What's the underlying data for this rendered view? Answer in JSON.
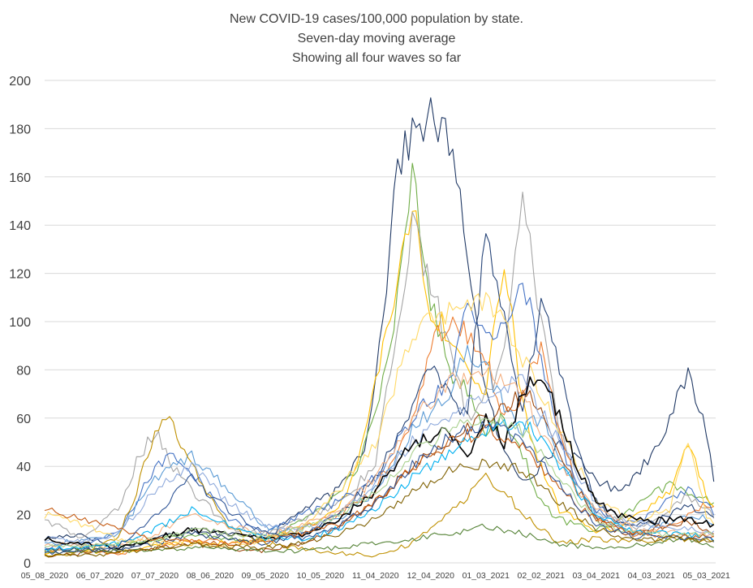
{
  "chart_data": {
    "type": "line",
    "title": [
      "New COVID-19 cases/100,000 population by state.",
      "Seven-day moving average",
      "Showing all four waves so far"
    ],
    "xlabel": "",
    "ylabel": "",
    "ylim": [
      0,
      200
    ],
    "yticks": [
      "0",
      "20",
      "40",
      "60",
      "80",
      "100",
      "120",
      "140",
      "160",
      "180",
      "200"
    ],
    "x_tick_labels": [
      "05_08_2020",
      "06_07_2020",
      "07_07_2020",
      "08_06_2020",
      "09_05_2020",
      "10_05_2020",
      "11_04_2020",
      "12_04_2020",
      "01_03_2021",
      "02_02_2021",
      "03_04_2021",
      "04_03_2021",
      "05_03_2021"
    ],
    "grid": "horizontal",
    "legend": "none",
    "x_note": "x values are days; first tick 05_08_2020, ticks every 30 days",
    "series": [
      {
        "color": "#1f3864",
        "x": [
          0,
          20,
          40,
          60,
          80,
          100,
          120,
          140,
          160,
          175,
          180,
          185,
          190,
          200,
          210,
          220,
          230,
          240,
          250,
          260,
          270,
          280,
          290,
          300,
          310,
          320,
          330,
          340,
          350,
          360,
          365
        ],
        "values": [
          10,
          12,
          6,
          10,
          14,
          12,
          10,
          22,
          30,
          50,
          80,
          105,
          160,
          178,
          185,
          175,
          130,
          70,
          45,
          35,
          40,
          50,
          42,
          35,
          30,
          35,
          45,
          60,
          78,
          55,
          30
        ]
      },
      {
        "color": "#70ad47",
        "x": [
          0,
          20,
          40,
          60,
          80,
          100,
          120,
          140,
          160,
          170,
          180,
          190,
          200,
          210,
          220,
          230,
          240,
          250,
          260,
          270,
          280,
          290,
          300,
          310,
          320,
          330,
          340,
          350,
          360,
          365
        ],
        "values": [
          5,
          6,
          7,
          10,
          12,
          10,
          9,
          18,
          28,
          40,
          60,
          100,
          165,
          110,
          80,
          70,
          55,
          60,
          45,
          25,
          18,
          15,
          14,
          16,
          22,
          28,
          32,
          30,
          27,
          24
        ]
      },
      {
        "color": "#ffc000",
        "x": [
          0,
          20,
          40,
          60,
          80,
          100,
          120,
          140,
          160,
          170,
          180,
          190,
          200,
          210,
          220,
          230,
          240,
          250,
          260,
          270,
          280,
          290,
          300,
          310,
          320,
          330,
          340,
          350,
          360,
          365
        ],
        "values": [
          4,
          5,
          4,
          7,
          9,
          8,
          10,
          15,
          22,
          40,
          75,
          110,
          150,
          105,
          95,
          80,
          70,
          125,
          65,
          40,
          22,
          17,
          13,
          14,
          18,
          24,
          30,
          50,
          28,
          20
        ]
      },
      {
        "color": "#a5a5a5",
        "x": [
          0,
          20,
          40,
          50,
          60,
          70,
          80,
          100,
          120,
          140,
          160,
          180,
          200,
          220,
          230,
          240,
          250,
          260,
          270,
          280,
          290,
          300,
          310,
          320,
          330,
          340,
          350,
          360,
          365
        ],
        "values": [
          18,
          10,
          22,
          42,
          55,
          40,
          30,
          15,
          12,
          18,
          25,
          40,
          140,
          90,
          60,
          70,
          85,
          150,
          100,
          55,
          30,
          22,
          18,
          15,
          16,
          22,
          28,
          22,
          18
        ]
      },
      {
        "color": "#ed7d31",
        "x": [
          0,
          20,
          40,
          60,
          80,
          100,
          120,
          140,
          160,
          180,
          200,
          210,
          220,
          230,
          240,
          250,
          260,
          270,
          280,
          290,
          300,
          310,
          320,
          330,
          340,
          350,
          360,
          365
        ],
        "values": [
          5,
          5,
          4,
          6,
          10,
          8,
          10,
          14,
          20,
          30,
          60,
          90,
          100,
          95,
          85,
          60,
          70,
          90,
          55,
          30,
          20,
          15,
          12,
          13,
          16,
          20,
          24,
          22
        ]
      },
      {
        "color": "#4472c4",
        "x": [
          0,
          20,
          40,
          50,
          60,
          70,
          80,
          100,
          120,
          140,
          160,
          180,
          200,
          220,
          230,
          240,
          250,
          260,
          270,
          280,
          290,
          300,
          310,
          320,
          330,
          340,
          350,
          360,
          365
        ],
        "values": [
          6,
          8,
          12,
          25,
          40,
          45,
          38,
          18,
          12,
          20,
          25,
          35,
          60,
          75,
          110,
          95,
          100,
          118,
          85,
          50,
          30,
          22,
          18,
          17,
          20,
          26,
          30,
          24,
          20
        ]
      },
      {
        "color": "#5b9bd5",
        "x": [
          0,
          20,
          40,
          60,
          80,
          100,
          120,
          140,
          160,
          180,
          200,
          220,
          230,
          240,
          250,
          260,
          270,
          280,
          290,
          300,
          310,
          320,
          330,
          340,
          350,
          360,
          365
        ],
        "values": [
          8,
          9,
          12,
          35,
          45,
          30,
          15,
          12,
          18,
          30,
          55,
          70,
          90,
          80,
          65,
          55,
          60,
          45,
          30,
          20,
          15,
          12,
          14,
          17,
          20,
          18,
          15
        ]
      },
      {
        "color": "#264478",
        "x": [
          0,
          20,
          40,
          60,
          80,
          100,
          120,
          140,
          160,
          180,
          200,
          210,
          220,
          230,
          240,
          250,
          260,
          270,
          280,
          290,
          300,
          310,
          320,
          330,
          340,
          350,
          360,
          365
        ],
        "values": [
          5,
          6,
          5,
          8,
          12,
          10,
          8,
          12,
          20,
          35,
          65,
          80,
          70,
          60,
          140,
          100,
          60,
          110,
          80,
          45,
          25,
          18,
          15,
          16,
          20,
          24,
          20,
          17
        ]
      },
      {
        "color": "#9e480e",
        "x": [
          0,
          20,
          40,
          60,
          80,
          100,
          120,
          140,
          160,
          180,
          200,
          220,
          240,
          260,
          270,
          280,
          290,
          300,
          310,
          320,
          330,
          340,
          350,
          360,
          365
        ],
        "values": [
          3,
          4,
          5,
          6,
          8,
          6,
          5,
          8,
          15,
          25,
          40,
          50,
          60,
          70,
          65,
          45,
          30,
          18,
          14,
          12,
          14,
          16,
          17,
          14,
          12
        ]
      },
      {
        "color": "#bf9000",
        "x": [
          0,
          20,
          40,
          50,
          60,
          70,
          80,
          100,
          120,
          140,
          160,
          180,
          200,
          220,
          240,
          250,
          260,
          280,
          300,
          320,
          340,
          360,
          365
        ],
        "values": [
          3,
          4,
          10,
          30,
          55,
          58,
          40,
          15,
          8,
          6,
          4,
          3,
          8,
          20,
          35,
          30,
          20,
          8,
          10,
          9,
          10,
          9,
          8
        ]
      },
      {
        "color": "#548235",
        "x": [
          0,
          20,
          40,
          60,
          80,
          100,
          120,
          140,
          160,
          180,
          200,
          220,
          240,
          260,
          280,
          300,
          320,
          340,
          350,
          360,
          365
        ],
        "values": [
          4,
          5,
          5,
          5,
          6,
          6,
          5,
          5,
          6,
          8,
          10,
          12,
          15,
          12,
          8,
          6,
          7,
          9,
          10,
          8,
          7
        ]
      },
      {
        "color": "#ffd966",
        "x": [
          0,
          20,
          40,
          60,
          80,
          100,
          120,
          140,
          160,
          180,
          200,
          220,
          240,
          260,
          280,
          300,
          320,
          340,
          350,
          360,
          365
        ],
        "values": [
          20,
          16,
          10,
          8,
          8,
          7,
          9,
          14,
          30,
          50,
          95,
          105,
          110,
          85,
          55,
          25,
          18,
          22,
          52,
          20,
          15
        ]
      },
      {
        "color": "#8faadc",
        "x": [
          0,
          20,
          40,
          60,
          80,
          100,
          120,
          140,
          160,
          180,
          200,
          220,
          240,
          260,
          280,
          300,
          320,
          340,
          360,
          365
        ],
        "values": [
          10,
          9,
          12,
          30,
          40,
          25,
          15,
          14,
          20,
          32,
          50,
          60,
          70,
          75,
          50,
          25,
          16,
          15,
          13,
          12
        ]
      },
      {
        "color": "#f4b183",
        "x": [
          0,
          20,
          40,
          60,
          80,
          100,
          120,
          140,
          160,
          180,
          200,
          220,
          240,
          260,
          280,
          300,
          320,
          340,
          360,
          365
        ],
        "values": [
          8,
          7,
          7,
          12,
          20,
          15,
          12,
          15,
          22,
          35,
          60,
          75,
          80,
          70,
          40,
          22,
          14,
          13,
          12,
          11
        ]
      },
      {
        "color": "#000000",
        "x": [
          0,
          20,
          40,
          60,
          80,
          100,
          120,
          140,
          160,
          180,
          200,
          220,
          230,
          240,
          250,
          260,
          270,
          280,
          290,
          300,
          310,
          320,
          330,
          340,
          350,
          360,
          365
        ],
        "values": [
          10,
          8,
          6,
          10,
          14,
          12,
          10,
          12,
          18,
          30,
          50,
          55,
          45,
          60,
          50,
          70,
          80,
          60,
          40,
          25,
          20,
          18,
          17,
          18,
          18,
          17,
          15
        ]
      },
      {
        "color": "#00b0f0",
        "x": [
          0,
          20,
          40,
          60,
          80,
          100,
          120,
          140,
          160,
          180,
          200,
          220,
          240,
          260,
          280,
          300,
          320,
          340,
          360,
          365
        ],
        "values": [
          6,
          6,
          8,
          14,
          22,
          16,
          10,
          10,
          14,
          22,
          35,
          45,
          55,
          60,
          40,
          20,
          13,
          12,
          11,
          10
        ]
      },
      {
        "color": "#a9d18e",
        "x": [
          0,
          20,
          40,
          60,
          80,
          100,
          120,
          140,
          160,
          180,
          200,
          220,
          240,
          260,
          280,
          300,
          320,
          340,
          360,
          365
        ],
        "values": [
          7,
          7,
          8,
          10,
          14,
          12,
          11,
          14,
          20,
          30,
          45,
          55,
          60,
          55,
          35,
          18,
          12,
          12,
          12,
          11
        ]
      },
      {
        "color": "#c55a11",
        "x": [
          0,
          20,
          40,
          60,
          80,
          100,
          120,
          140,
          160,
          180,
          200,
          220,
          240,
          260,
          280,
          300,
          320,
          340,
          360,
          365
        ],
        "values": [
          22,
          18,
          14,
          10,
          9,
          8,
          9,
          12,
          16,
          25,
          40,
          50,
          55,
          48,
          30,
          18,
          12,
          11,
          11,
          10
        ]
      },
      {
        "color": "#2f5597",
        "x": [
          0,
          20,
          40,
          60,
          80,
          100,
          120,
          140,
          160,
          180,
          200,
          220,
          240,
          260,
          280,
          300,
          320,
          340,
          360,
          365
        ],
        "values": [
          4,
          5,
          7,
          20,
          35,
          22,
          12,
          10,
          15,
          25,
          40,
          52,
          58,
          50,
          32,
          16,
          11,
          11,
          10,
          9
        ]
      },
      {
        "color": "#7f6000",
        "x": [
          0,
          20,
          40,
          60,
          80,
          100,
          120,
          140,
          160,
          180,
          200,
          220,
          240,
          260,
          280,
          300,
          320,
          340,
          360,
          365
        ],
        "values": [
          3,
          3,
          4,
          6,
          8,
          7,
          6,
          8,
          12,
          18,
          30,
          38,
          42,
          38,
          25,
          14,
          10,
          10,
          9,
          9
        ]
      }
    ]
  }
}
